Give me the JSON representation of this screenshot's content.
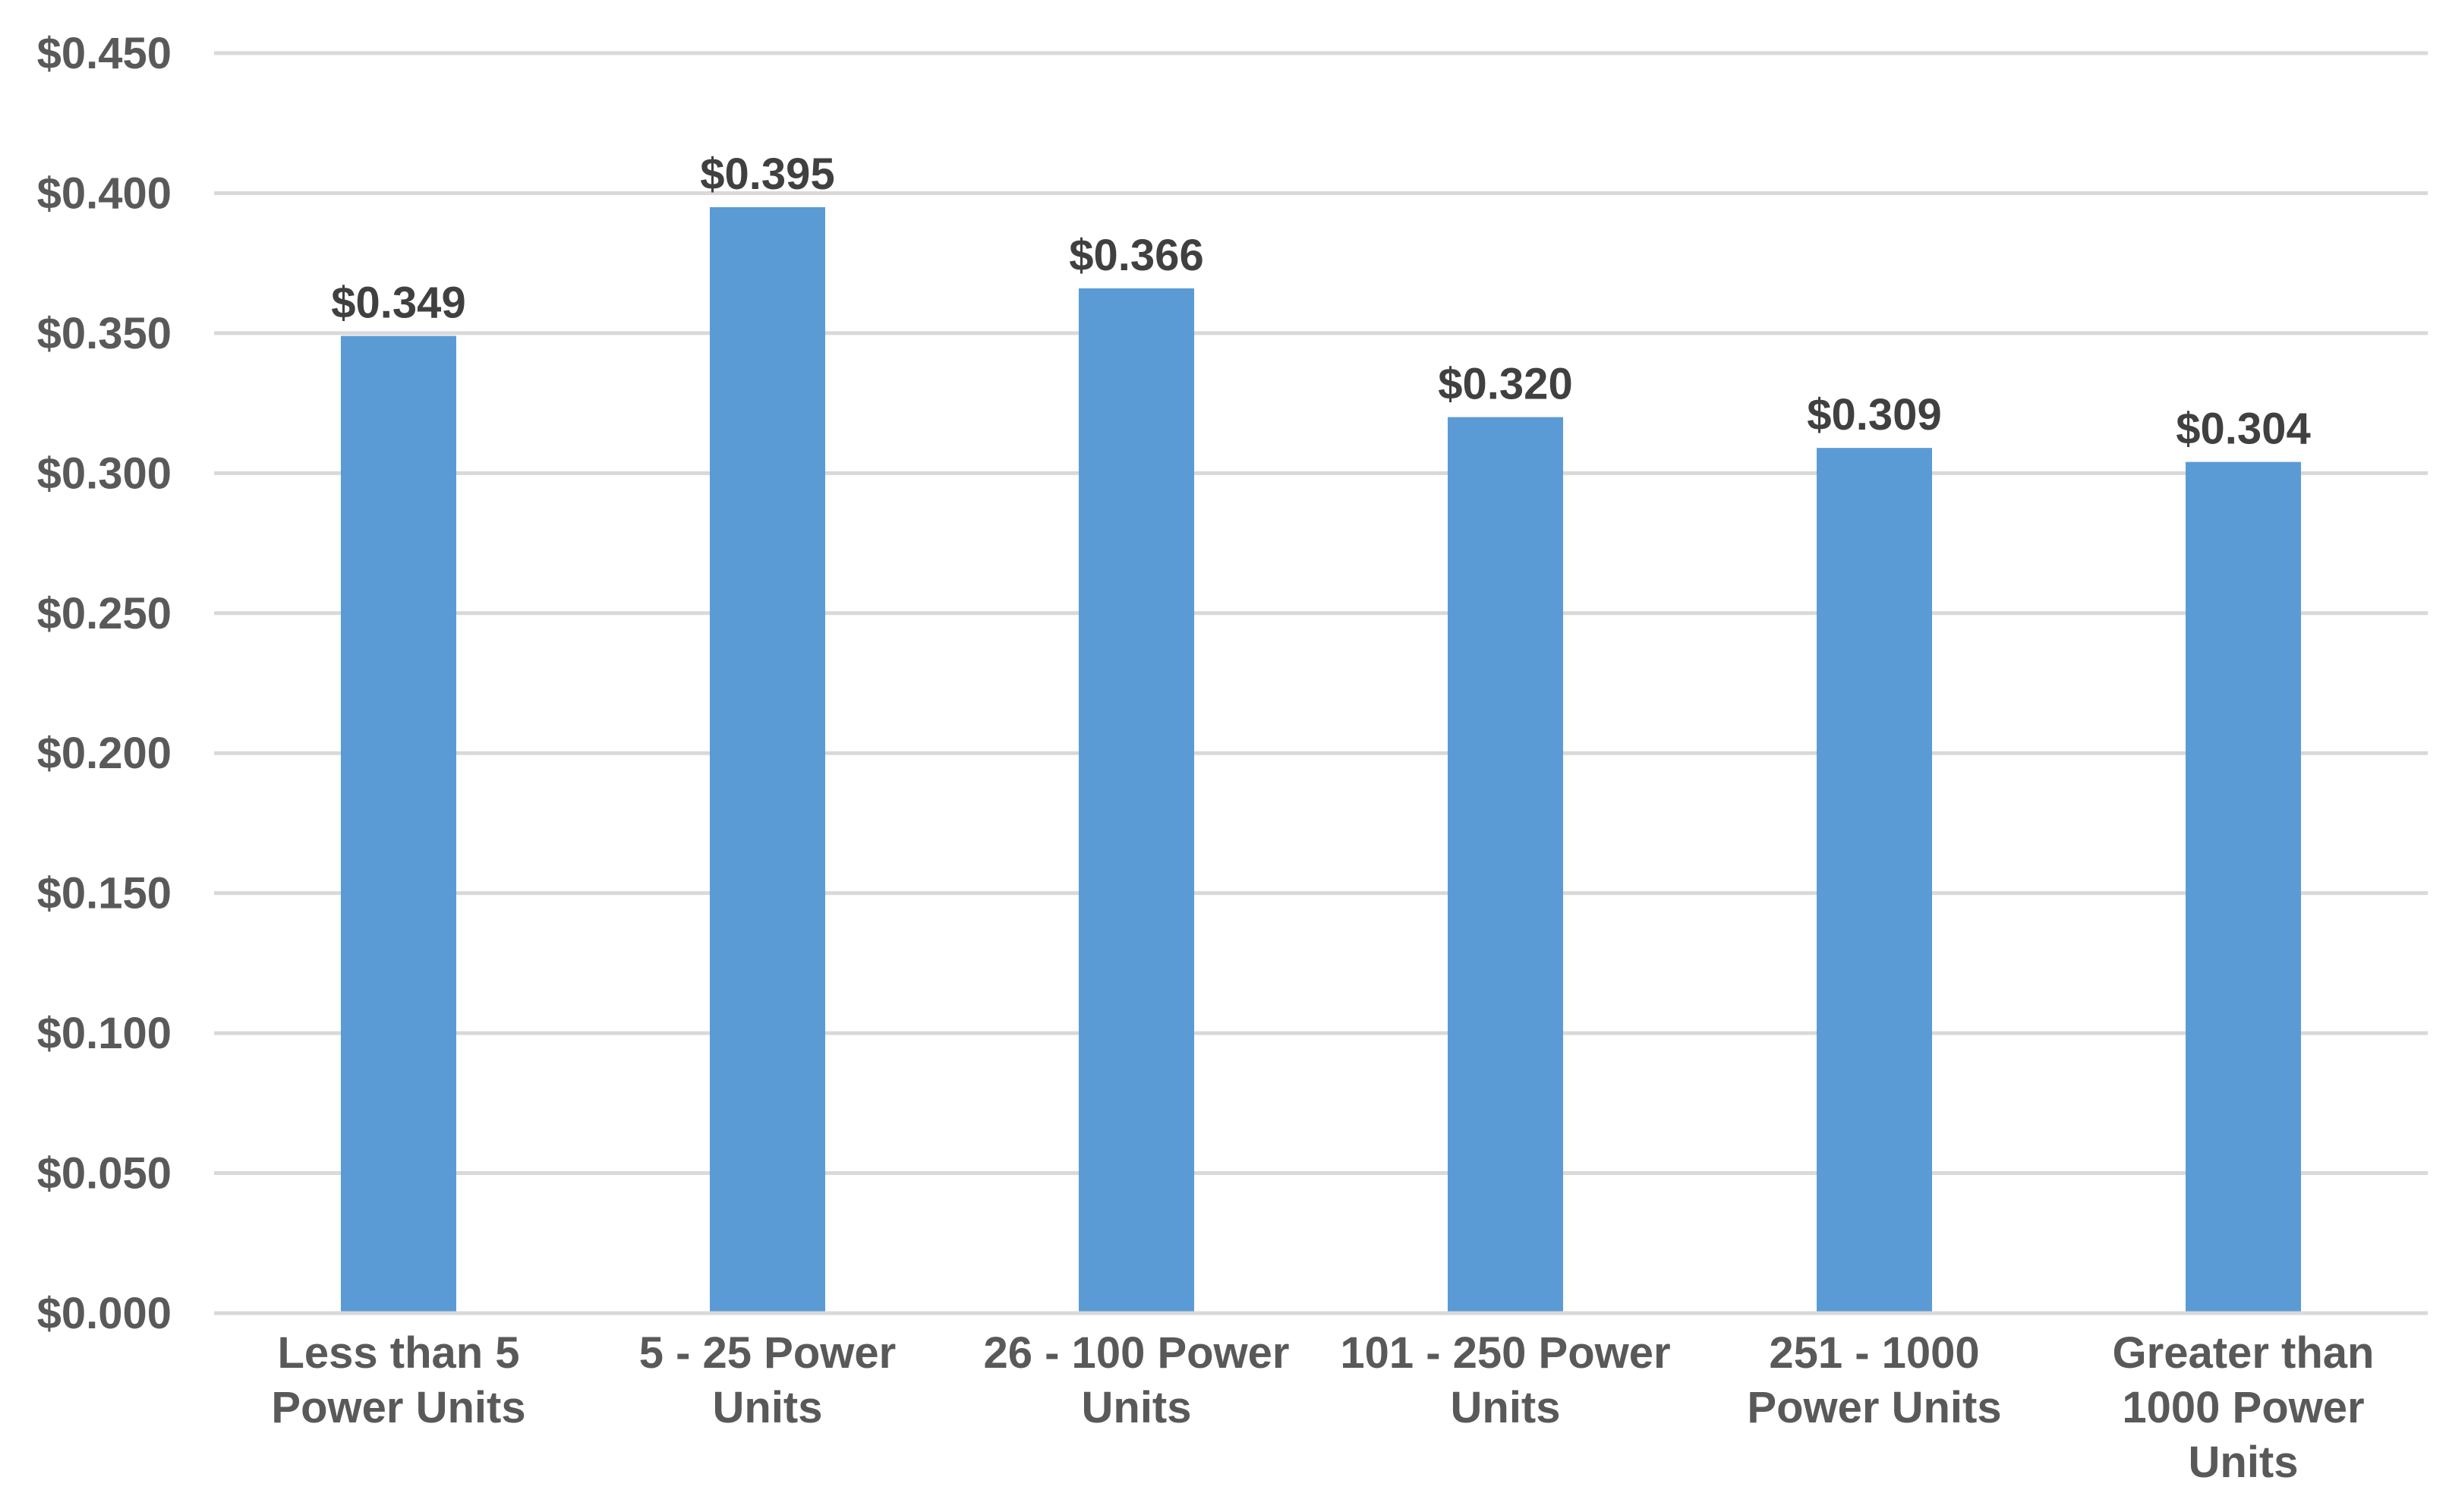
{
  "chart_data": {
    "type": "bar",
    "title": "",
    "xlabel": "",
    "ylabel": "",
    "categories": [
      [
        "Less than 5",
        "Power Units"
      ],
      [
        "5 - 25 Power",
        "Units"
      ],
      [
        "26 - 100 Power",
        "Units"
      ],
      [
        "101 - 250 Power",
        "Units"
      ],
      [
        "251 - 1000",
        "Power Units"
      ],
      [
        "Greater than",
        "1000 Power",
        "Units"
      ]
    ],
    "values": [
      0.349,
      0.395,
      0.366,
      0.32,
      0.309,
      0.304
    ],
    "data_labels": [
      "$0.349",
      "$0.395",
      "$0.366",
      "$0.320",
      "$0.309",
      "$0.304"
    ],
    "ylim": [
      0,
      0.45
    ],
    "yticks": [
      0,
      0.05,
      0.1,
      0.15,
      0.2,
      0.25,
      0.3,
      0.35,
      0.4,
      0.45
    ],
    "ytick_labels": [
      "$0.000",
      "$0.050",
      "$0.100",
      "$0.150",
      "$0.200",
      "$0.250",
      "$0.300",
      "$0.350",
      "$0.400",
      "$0.450"
    ],
    "grid": true,
    "legend": "none",
    "colors": {
      "bar": "#5b9bd5",
      "grid": "#d9d9d9",
      "axis_text": "#595959",
      "data_label_text": "#404040"
    }
  }
}
